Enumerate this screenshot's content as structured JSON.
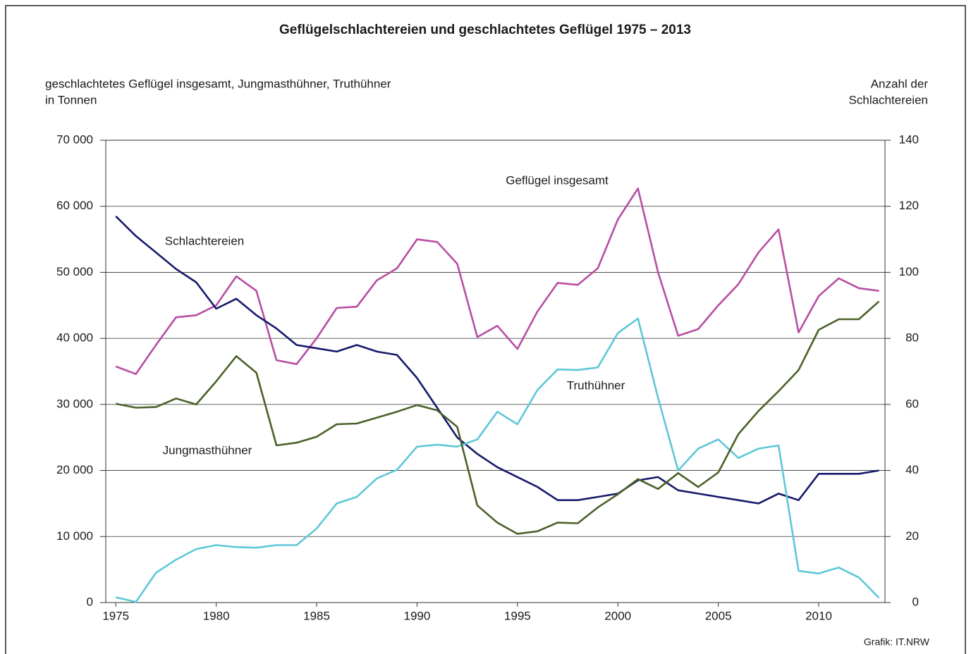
{
  "chart_data": {
    "type": "line",
    "title": "Geflügelschlachtereien und geschlachtetes Geflügel 1975 – 2013",
    "ylabel": [
      "geschlachtetes Geflügel insgesamt, Jungmasthühner, Truthühner",
      "in Tonnen"
    ],
    "y2label": [
      "Anzahl der",
      "Schlachtereien"
    ],
    "source": "Grafik: IT.NRW",
    "x": [
      1975,
      1976,
      1977,
      1978,
      1979,
      1980,
      1981,
      1982,
      1983,
      1984,
      1985,
      1986,
      1987,
      1988,
      1989,
      1990,
      1991,
      1992,
      1993,
      1994,
      1995,
      1996,
      1997,
      1998,
      1999,
      2000,
      2001,
      2002,
      2003,
      2004,
      2005,
      2006,
      2007,
      2008,
      2009,
      2010,
      2011,
      2012,
      2013
    ],
    "xlim": [
      1974.5,
      2013.3
    ],
    "xticks": [
      1975,
      1980,
      1985,
      1990,
      1995,
      2000,
      2005,
      2010
    ],
    "ylim": [
      0,
      70000
    ],
    "yticks": [
      0,
      {
        "value": 10000,
        "label": "10 000"
      },
      {
        "value": 20000,
        "label": "20 000"
      },
      {
        "value": 30000,
        "label": "30 000"
      },
      {
        "value": 40000,
        "label": "40 000"
      },
      {
        "value": 50000,
        "label": "50 000"
      },
      {
        "value": 60000,
        "label": "60 000"
      },
      {
        "value": 70000,
        "label": "70 000"
      }
    ],
    "y2lim": [
      0,
      140
    ],
    "y2ticks": [
      0,
      20,
      40,
      60,
      80,
      100,
      120,
      140
    ],
    "grid": true,
    "series": [
      {
        "name": "Geflügel insgesamt",
        "color": "#b84ea2",
        "values": [
          35750,
          34600,
          39000,
          43200,
          43500,
          45000,
          49400,
          47200,
          36700,
          36100,
          40000,
          44600,
          44800,
          48800,
          50600,
          55000,
          54600,
          51300,
          40200,
          41900,
          38400,
          44100,
          48400,
          48100,
          50600,
          58000,
          62700,
          50000,
          40400,
          41400,
          45000,
          48200,
          53000,
          56500,
          40900,
          46400,
          49100,
          47600,
          47200
        ]
      },
      {
        "name": "Schlachtereien",
        "color": "#15196a",
        "axis": "y2",
        "values": [
          117,
          111,
          106,
          101,
          97,
          89,
          92,
          87,
          83,
          78,
          77,
          76,
          78,
          76,
          75,
          68,
          59,
          50,
          45,
          41,
          38,
          35,
          31,
          31,
          32,
          33,
          37,
          38,
          34,
          33,
          32,
          31,
          30,
          33,
          31,
          39,
          39,
          39,
          40
        ]
      },
      {
        "name": "Truthühner",
        "color": "#5ec7d8",
        "values": [
          800,
          100,
          4500,
          6500,
          8100,
          8700,
          8400,
          8300,
          8700,
          8700,
          11200,
          15000,
          16000,
          18800,
          20100,
          23600,
          23900,
          23600,
          24700,
          28900,
          27000,
          32200,
          35300,
          35200,
          35600,
          40800,
          43000,
          31000,
          20000,
          23300,
          24700,
          21900,
          23300,
          23800,
          4800,
          4400,
          5300,
          3800,
          700
        ]
      },
      {
        "name": "Jungmasthühner",
        "color": "#4a6128",
        "values": [
          30100,
          29500,
          29600,
          30900,
          30000,
          33500,
          37300,
          34800,
          23800,
          24200,
          25100,
          27000,
          27100,
          28000,
          28900,
          29900,
          29100,
          26600,
          14700,
          12100,
          10400,
          10800,
          12100,
          12000,
          14400,
          16400,
          18700,
          17200,
          19600,
          17500,
          19700,
          25500,
          29000,
          32000,
          35200,
          41300,
          42900,
          42900,
          45600
        ]
      }
    ]
  }
}
